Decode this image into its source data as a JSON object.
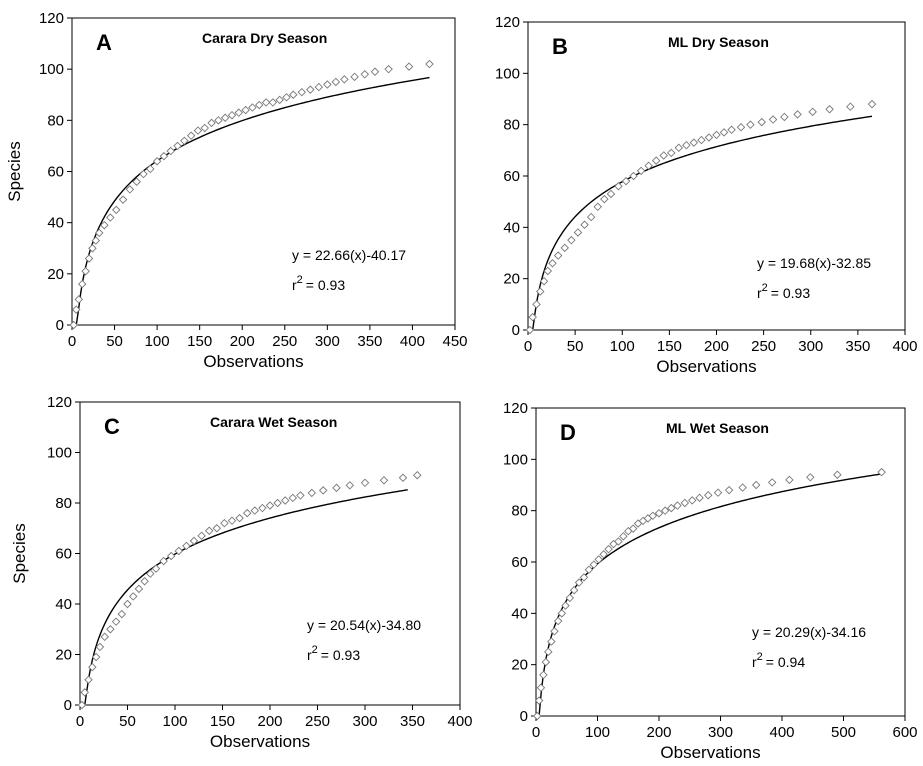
{
  "chart_data": [
    {
      "type": "scatter",
      "letter": "A",
      "title": "Carara Dry Season",
      "xlabel": "Observations",
      "ylabel": "Species",
      "xlim": [
        0,
        450
      ],
      "ylim": [
        0,
        120
      ],
      "xticks": [
        "0",
        "50",
        "100",
        "150",
        "200",
        "250",
        "300",
        "350",
        "400",
        "450"
      ],
      "yticks": [
        "0",
        "20",
        "40",
        "60",
        "80",
        "100",
        "120"
      ],
      "fit": {
        "a": 22.66,
        "b": -40.17,
        "x_start": 5,
        "x_end": 420,
        "equation": "y = 22.66(x)-40.17",
        "r2_prefix": "r",
        "r2_exp": "2",
        "r2_value": "= 0.93"
      },
      "series": [
        {
          "values": [
            [
              2,
              0
            ],
            [
              5,
              6
            ],
            [
              8,
              10
            ],
            [
              12,
              16
            ],
            [
              16,
              21
            ],
            [
              20,
              26
            ],
            [
              24,
              30
            ],
            [
              28,
              33
            ],
            [
              32,
              36
            ],
            [
              38,
              39
            ],
            [
              45,
              42
            ],
            [
              52,
              45
            ],
            [
              60,
              49
            ],
            [
              68,
              53
            ],
            [
              76,
              56
            ],
            [
              84,
              59
            ],
            [
              92,
              61
            ],
            [
              100,
              64
            ],
            [
              108,
              66
            ],
            [
              116,
              68
            ],
            [
              124,
              70
            ],
            [
              132,
              72
            ],
            [
              140,
              74
            ],
            [
              148,
              76
            ],
            [
              156,
              77
            ],
            [
              164,
              79
            ],
            [
              172,
              80
            ],
            [
              180,
              81
            ],
            [
              188,
              82
            ],
            [
              196,
              83
            ],
            [
              204,
              84
            ],
            [
              212,
              85
            ],
            [
              220,
              86
            ],
            [
              228,
              87
            ],
            [
              236,
              87
            ],
            [
              244,
              88
            ],
            [
              252,
              89
            ],
            [
              260,
              90
            ],
            [
              270,
              91
            ],
            [
              280,
              92
            ],
            [
              290,
              93
            ],
            [
              300,
              94
            ],
            [
              310,
              95
            ],
            [
              320,
              96
            ],
            [
              332,
              97
            ],
            [
              344,
              98
            ],
            [
              356,
              99
            ],
            [
              372,
              100
            ],
            [
              396,
              101
            ],
            [
              420,
              102
            ]
          ]
        }
      ]
    },
    {
      "type": "scatter",
      "letter": "B",
      "title": "ML Dry Season",
      "xlabel": "Observations",
      "ylabel": "",
      "xlim": [
        0,
        400
      ],
      "ylim": [
        0,
        120
      ],
      "xticks": [
        "0",
        "50",
        "100",
        "150",
        "200",
        "250",
        "300",
        "350",
        "400"
      ],
      "yticks": [
        "0",
        "20",
        "40",
        "60",
        "80",
        "100",
        "120"
      ],
      "fit": {
        "a": 19.68,
        "b": -32.85,
        "x_start": 5,
        "x_end": 365,
        "equation": "y = 19.68(x)-32.85",
        "r2_prefix": "r",
        "r2_exp": "2",
        "r2_value": "= 0.93"
      },
      "series": [
        {
          "values": [
            [
              2,
              0
            ],
            [
              5,
              5
            ],
            [
              9,
              10
            ],
            [
              13,
              15
            ],
            [
              17,
              19
            ],
            [
              21,
              23
            ],
            [
              26,
              26
            ],
            [
              32,
              29
            ],
            [
              39,
              32
            ],
            [
              46,
              35
            ],
            [
              53,
              38
            ],
            [
              60,
              41
            ],
            [
              67,
              44
            ],
            [
              74,
              48
            ],
            [
              81,
              51
            ],
            [
              88,
              53
            ],
            [
              96,
              56
            ],
            [
              104,
              58
            ],
            [
              112,
              60
            ],
            [
              120,
              62
            ],
            [
              128,
              64
            ],
            [
              136,
              66
            ],
            [
              144,
              68
            ],
            [
              152,
              69
            ],
            [
              160,
              71
            ],
            [
              168,
              72
            ],
            [
              176,
              73
            ],
            [
              184,
              74
            ],
            [
              192,
              75
            ],
            [
              200,
              76
            ],
            [
              208,
              77
            ],
            [
              216,
              78
            ],
            [
              226,
              79
            ],
            [
              236,
              80
            ],
            [
              248,
              81
            ],
            [
              260,
              82
            ],
            [
              272,
              83
            ],
            [
              286,
              84
            ],
            [
              302,
              85
            ],
            [
              320,
              86
            ],
            [
              342,
              87
            ],
            [
              365,
              88
            ]
          ]
        }
      ]
    },
    {
      "type": "scatter",
      "letter": "C",
      "title": "Carara Wet Season",
      "xlabel": "Observations",
      "ylabel": "Species",
      "xlim": [
        0,
        400
      ],
      "ylim": [
        0,
        120
      ],
      "xticks": [
        "0",
        "50",
        "100",
        "150",
        "200",
        "250",
        "300",
        "350",
        "400"
      ],
      "yticks": [
        "0",
        "20",
        "40",
        "60",
        "80",
        "100",
        "120"
      ],
      "fit": {
        "a": 20.54,
        "b": -34.8,
        "x_start": 5,
        "x_end": 345,
        "equation": "y = 20.54(x)-34.80",
        "r2_prefix": "r",
        "r2_exp": "2",
        "r2_value": "= 0.93"
      },
      "series": [
        {
          "values": [
            [
              2,
              0
            ],
            [
              5,
              5
            ],
            [
              9,
              10
            ],
            [
              13,
              15
            ],
            [
              17,
              19
            ],
            [
              21,
              23
            ],
            [
              26,
              27
            ],
            [
              32,
              30
            ],
            [
              38,
              33
            ],
            [
              44,
              36
            ],
            [
              50,
              40
            ],
            [
              56,
              43
            ],
            [
              62,
              46
            ],
            [
              68,
              49
            ],
            [
              74,
              52
            ],
            [
              80,
              54
            ],
            [
              88,
              57
            ],
            [
              96,
              59
            ],
            [
              104,
              61
            ],
            [
              112,
              63
            ],
            [
              120,
              65
            ],
            [
              128,
              67
            ],
            [
              136,
              69
            ],
            [
              144,
              70
            ],
            [
              152,
              72
            ],
            [
              160,
              73
            ],
            [
              168,
              74
            ],
            [
              176,
              76
            ],
            [
              184,
              77
            ],
            [
              192,
              78
            ],
            [
              200,
              79
            ],
            [
              208,
              80
            ],
            [
              216,
              81
            ],
            [
              224,
              82
            ],
            [
              232,
              83
            ],
            [
              244,
              84
            ],
            [
              256,
              85
            ],
            [
              270,
              86
            ],
            [
              284,
              87
            ],
            [
              300,
              88
            ],
            [
              320,
              89
            ],
            [
              340,
              90
            ],
            [
              355,
              91
            ]
          ]
        }
      ]
    },
    {
      "type": "scatter",
      "letter": "D",
      "title": "ML Wet Season",
      "xlabel": "Observations",
      "ylabel": "",
      "xlim": [
        0,
        600
      ],
      "ylim": [
        0,
        120
      ],
      "xticks": [
        "0",
        "100",
        "200",
        "300",
        "400",
        "500",
        "600"
      ],
      "yticks": [
        "0",
        "20",
        "40",
        "60",
        "80",
        "100",
        "120"
      ],
      "fit": {
        "a": 20.29,
        "b": -34.16,
        "x_start": 5,
        "x_end": 560,
        "equation": "y = 20.29(x)-34.16",
        "r2_prefix": "r",
        "r2_exp": "2",
        "r2_value": "= 0.94"
      },
      "series": [
        {
          "values": [
            [
              2,
              0
            ],
            [
              5,
              6
            ],
            [
              8,
              11
            ],
            [
              12,
              16
            ],
            [
              16,
              21
            ],
            [
              20,
              25
            ],
            [
              25,
              29
            ],
            [
              30,
              33
            ],
            [
              36,
              37
            ],
            [
              42,
              40
            ],
            [
              48,
              43
            ],
            [
              55,
              46
            ],
            [
              62,
              49
            ],
            [
              70,
              52
            ],
            [
              78,
              54
            ],
            [
              86,
              57
            ],
            [
              94,
              59
            ],
            [
              102,
              61
            ],
            [
              110,
              63
            ],
            [
              118,
              65
            ],
            [
              126,
              67
            ],
            [
              134,
              68
            ],
            [
              142,
              70
            ],
            [
              150,
              72
            ],
            [
              158,
              73
            ],
            [
              166,
              75
            ],
            [
              174,
              76
            ],
            [
              182,
              77
            ],
            [
              190,
              78
            ],
            [
              200,
              79
            ],
            [
              210,
              80
            ],
            [
              220,
              81
            ],
            [
              230,
              82
            ],
            [
              242,
              83
            ],
            [
              254,
              84
            ],
            [
              266,
              85
            ],
            [
              280,
              86
            ],
            [
              296,
              87
            ],
            [
              314,
              88
            ],
            [
              336,
              89
            ],
            [
              358,
              90
            ],
            [
              384,
              91
            ],
            [
              412,
              92
            ],
            [
              446,
              93
            ],
            [
              490,
              94
            ],
            [
              562,
              95
            ]
          ]
        }
      ]
    }
  ]
}
